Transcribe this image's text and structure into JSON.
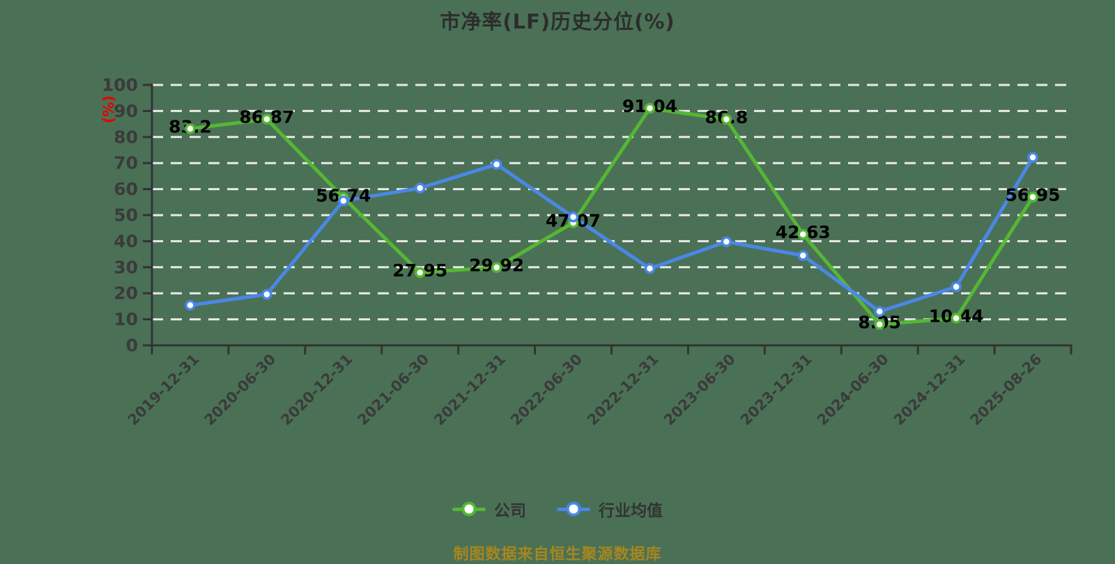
{
  "title": "市净率(LF)历史分位(%)",
  "caption": "制图数据来自恒生聚源数据库",
  "colors": {
    "background": "#4A7156",
    "title_text": "#2d2d2d",
    "axis": "#333333",
    "tick_label": "#3b3b3b",
    "gridline": "#E9E9E9",
    "data_label": "#000000",
    "y_unit_label": "#E60000",
    "caption_text": "#A8861D",
    "company_series": "#55B733",
    "industry_series": "#4A87E8",
    "marker_fill": "#FFFFFF"
  },
  "legend": {
    "items": [
      {
        "label": "公司",
        "color": "#55B733"
      },
      {
        "label": "行业均值",
        "color": "#4A87E8"
      }
    ]
  },
  "chart_data": {
    "type": "line",
    "title": "市净率(LF)历史分位(%)",
    "xlabel": "",
    "ylabel": "(%)",
    "ylim": [
      0,
      100
    ],
    "yticks": [
      "0",
      "10",
      "20",
      "30",
      "40",
      "50",
      "60",
      "70",
      "80",
      "90",
      "100"
    ],
    "grid": "dashed-horizontal",
    "legend_position": "bottom",
    "categories": [
      "2019-12-31",
      "2020-06-30",
      "2020-12-31",
      "2021-06-30",
      "2021-12-31",
      "2022-06-30",
      "2022-12-31",
      "2023-06-30",
      "2023-12-31",
      "2024-06-30",
      "2024-12-31",
      "2025-08-26"
    ],
    "series": [
      {
        "name": "公司",
        "color": "#55B733",
        "values": [
          83.2,
          86.87,
          56.74,
          27.95,
          29.92,
          47.07,
          91.04,
          86.8,
          42.63,
          8.05,
          10.44,
          56.95
        ],
        "labels": [
          "83.2",
          "86.87",
          "56.74",
          "27.95",
          "29.92",
          "47.07",
          "91.04",
          "86.8",
          "42.63",
          "8.05",
          "10.44",
          "56.95"
        ],
        "show_labels": true
      },
      {
        "name": "行业均值",
        "color": "#4A87E8",
        "values": [
          15.4,
          19.6,
          55.5,
          60.4,
          69.5,
          49.3,
          29.5,
          39.8,
          34.5,
          13.0,
          22.5,
          72.2
        ],
        "labels": [],
        "show_labels": false
      }
    ]
  }
}
